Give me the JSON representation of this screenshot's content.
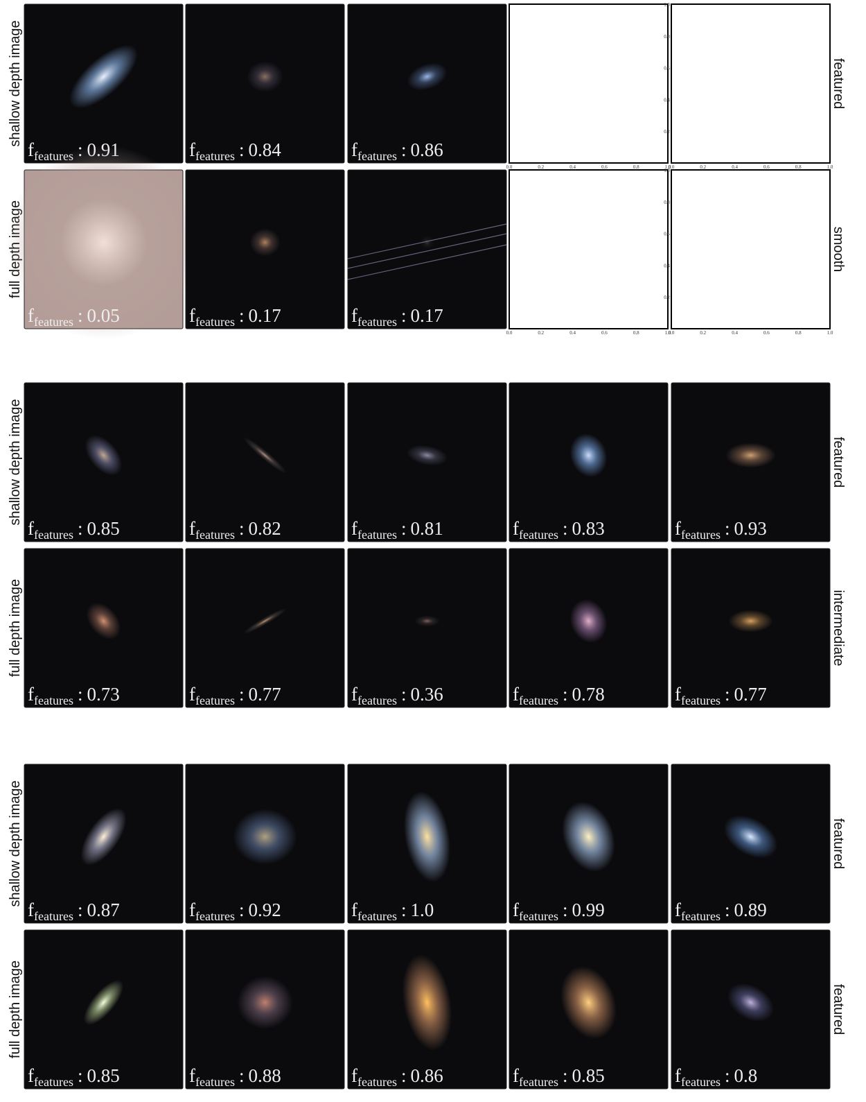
{
  "label_symbol": "f",
  "label_subscript": "features",
  "label_separator": ":",
  "axis_ticks": [
    "0.0",
    "0.2",
    "0.4",
    "0.6",
    "0.8",
    "1.0"
  ],
  "groups": [
    {
      "rows": [
        {
          "left_label": "shallow depth image",
          "right_label": "featured",
          "panels": [
            "0.91",
            "0.84",
            "0.86"
          ]
        },
        {
          "left_label": "full depth image",
          "right_label": "smooth",
          "panels": [
            "0.05",
            "0.17",
            "0.17"
          ]
        }
      ]
    },
    {
      "rows": [
        {
          "left_label": "shallow depth image",
          "right_label": "featured",
          "panels": [
            "0.85",
            "0.82",
            "0.81",
            "0.83",
            "0.93"
          ]
        },
        {
          "left_label": "full depth image",
          "right_label": "intermediate",
          "panels": [
            "0.73",
            "0.77",
            "0.36",
            "0.78",
            "0.77"
          ]
        }
      ]
    },
    {
      "rows": [
        {
          "left_label": "shallow depth image",
          "right_label": "featured",
          "panels": [
            "0.87",
            "0.92",
            "1.0",
            "0.99",
            "0.89"
          ]
        },
        {
          "left_label": "full depth image",
          "right_label": "featured",
          "panels": [
            "0.85",
            "0.88",
            "0.86",
            "0.85",
            "0.8"
          ]
        }
      ]
    }
  ]
}
